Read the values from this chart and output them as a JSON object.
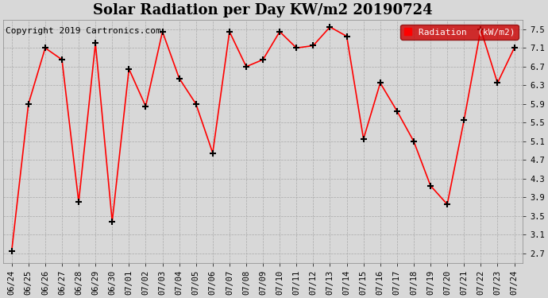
{
  "title": "Solar Radiation per Day KW/m2 20190724",
  "copyright": "Copyright 2019 Cartronics.com",
  "legend_label": "Radiation  (kW/m2)",
  "dates": [
    "06/24",
    "06/25",
    "06/26",
    "06/27",
    "06/28",
    "06/29",
    "06/30",
    "07/01",
    "07/02",
    "07/03",
    "07/04",
    "07/05",
    "07/06",
    "07/07",
    "07/08",
    "07/09",
    "07/10",
    "07/11",
    "07/12",
    "07/13",
    "07/14",
    "07/15",
    "07/16",
    "07/17",
    "07/18",
    "07/19",
    "07/20",
    "07/21",
    "07/22",
    "07/23",
    "07/24"
  ],
  "values": [
    2.75,
    5.9,
    7.1,
    6.85,
    3.8,
    7.2,
    3.38,
    6.65,
    5.85,
    7.45,
    6.45,
    5.9,
    4.85,
    7.45,
    6.7,
    6.85,
    7.45,
    7.1,
    7.15,
    7.55,
    7.35,
    5.15,
    6.35,
    5.75,
    5.1,
    4.15,
    3.75,
    5.55,
    7.5,
    6.35,
    7.1
  ],
  "line_color": "#ff0000",
  "marker_color": "#000000",
  "marker": "+",
  "marker_size": 6,
  "marker_linewidth": 1.5,
  "ylim": [
    2.5,
    7.7
  ],
  "yticks": [
    2.7,
    3.1,
    3.5,
    3.9,
    4.3,
    4.7,
    5.1,
    5.5,
    5.9,
    6.3,
    6.7,
    7.1,
    7.5
  ],
  "bg_color": "#d8d8d8",
  "plot_bg_color": "#d8d8d8",
  "legend_bg": "#cc0000",
  "legend_text_color": "#ffffff",
  "title_fontsize": 13,
  "copyright_fontsize": 8,
  "tick_fontsize": 7.5,
  "line_width": 1.2
}
